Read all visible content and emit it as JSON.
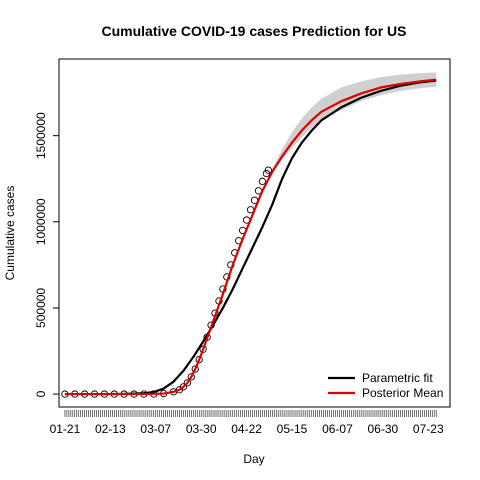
{
  "chart_data": {
    "type": "line",
    "title": "Cumulative COVID-19 cases Prediction for US",
    "xlabel": "Day",
    "ylabel": "Cumulative cases",
    "x_tick_labels": [
      "01-21",
      "02-13",
      "03-07",
      "03-30",
      "04-22",
      "05-15",
      "06-07",
      "06-30",
      "07-23"
    ],
    "x_tick_days": [
      0,
      23,
      46,
      69,
      92,
      115,
      138,
      161,
      184
    ],
    "y_ticks": [
      0,
      500000,
      1000000,
      1500000
    ],
    "y_tick_labels": [
      "0",
      "500000",
      "1000000",
      "1500000"
    ],
    "xlim": [
      -3,
      195
    ],
    "ylim": [
      -75000,
      1945000
    ],
    "observed_days": [
      0,
      103
    ],
    "legend": {
      "position": "bottom-right",
      "entries": [
        {
          "label": "Parametric fit",
          "color": "#000000"
        },
        {
          "label": "Posterior Mean",
          "color": "#dd0000"
        }
      ]
    },
    "series": [
      {
        "name": "Observed",
        "kind": "points",
        "x": [
          0,
          5,
          10,
          15,
          20,
          25,
          30,
          35,
          40,
          45,
          50,
          55,
          58,
          60,
          62,
          64,
          66,
          68,
          70,
          72,
          74,
          76,
          78,
          80,
          82,
          84,
          86,
          88,
          90,
          92,
          94,
          96,
          98,
          100,
          102,
          103
        ],
        "y": [
          1,
          5,
          10,
          15,
          15,
          15,
          15,
          20,
          100,
          500,
          3000,
          13000,
          25000,
          42000,
          65000,
          100000,
          145000,
          200000,
          260000,
          330000,
          400000,
          470000,
          540000,
          610000,
          680000,
          750000,
          820000,
          890000,
          950000,
          1010000,
          1070000,
          1125000,
          1180000,
          1235000,
          1280000,
          1300000
        ]
      },
      {
        "name": "Parametric fit",
        "kind": "line",
        "color": "#000000",
        "x": [
          0,
          20,
          30,
          40,
          45,
          50,
          55,
          60,
          65,
          70,
          75,
          80,
          85,
          90,
          95,
          100,
          105,
          110,
          115,
          120,
          125,
          130,
          140,
          150,
          160,
          170,
          180,
          188
        ],
        "y": [
          0,
          0,
          1000,
          5000,
          12000,
          32000,
          72000,
          135000,
          215000,
          305000,
          400000,
          500000,
          610000,
          730000,
          850000,
          970000,
          1100000,
          1250000,
          1370000,
          1460000,
          1530000,
          1590000,
          1665000,
          1720000,
          1760000,
          1790000,
          1810000,
          1820000
        ]
      },
      {
        "name": "Posterior Mean",
        "kind": "line",
        "color": "#dd0000",
        "x": [
          0,
          20,
          40,
          50,
          55,
          58,
          60,
          62,
          64,
          66,
          68,
          70,
          75,
          80,
          85,
          90,
          95,
          100,
          105,
          110,
          115,
          120,
          125,
          130,
          140,
          150,
          160,
          170,
          180,
          188
        ],
        "y": [
          0,
          0,
          100,
          3000,
          13000,
          25000,
          42000,
          65000,
          100000,
          145000,
          200000,
          260000,
          420000,
          580000,
          750000,
          900000,
          1040000,
          1180000,
          1290000,
          1380000,
          1460000,
          1530000,
          1590000,
          1640000,
          1700000,
          1745000,
          1780000,
          1800000,
          1815000,
          1825000
        ]
      },
      {
        "name": "Uncertainty band",
        "kind": "band",
        "color": "#d0d0d0",
        "x": [
          100,
          105,
          110,
          115,
          120,
          125,
          130,
          140,
          150,
          160,
          170,
          180,
          188
        ],
        "lower": [
          1180000,
          1280000,
          1360000,
          1430000,
          1490000,
          1545000,
          1590000,
          1650000,
          1700000,
          1735000,
          1760000,
          1775000,
          1785000
        ],
        "upper": [
          1185000,
          1310000,
          1420000,
          1520000,
          1600000,
          1665000,
          1715000,
          1780000,
          1815000,
          1840000,
          1855000,
          1862000,
          1867000
        ]
      }
    ]
  }
}
